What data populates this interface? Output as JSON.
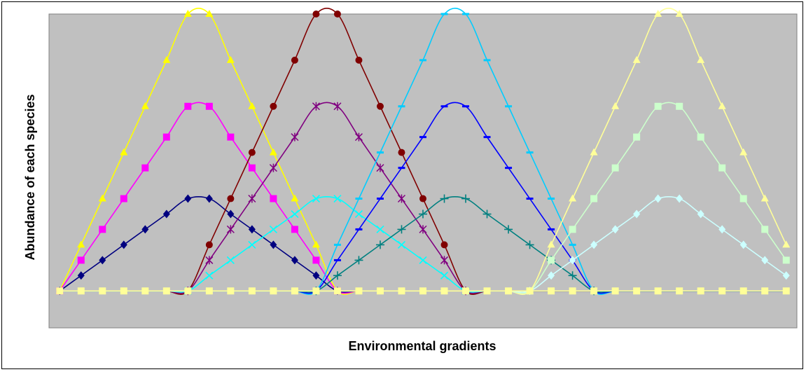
{
  "chart_data": {
    "type": "line",
    "title": "",
    "xlabel": "Environmental gradients",
    "ylabel": "Abundance of each species",
    "x": [
      1,
      2,
      3,
      4,
      5,
      6,
      7,
      8,
      9,
      10,
      11,
      12,
      13,
      14,
      15,
      16,
      17,
      18,
      19,
      20,
      21,
      22,
      23,
      24,
      25,
      26,
      27,
      28,
      29,
      30,
      31,
      32,
      33,
      34,
      35
    ],
    "xlim": [
      0.5,
      35.5
    ],
    "ylim": [
      -0.4,
      3.0
    ],
    "grid": false,
    "legend": "none",
    "plot_background": "#c0c0c0",
    "series": [
      {
        "color": "#ffff00",
        "marker": "triangle",
        "values": [
          0,
          0.5,
          1,
          1.5,
          2,
          2.5,
          3,
          3,
          2.5,
          2,
          1.5,
          1,
          0.5,
          0,
          0,
          0,
          0,
          0,
          0,
          0,
          0,
          0,
          0,
          0,
          0,
          0,
          0,
          0,
          0,
          0,
          0,
          0,
          0,
          0,
          0
        ]
      },
      {
        "color": "#ff00ff",
        "marker": "square",
        "values": [
          0,
          0.333,
          0.667,
          1,
          1.333,
          1.667,
          2,
          2,
          1.667,
          1.333,
          1,
          0.667,
          0.333,
          0,
          0,
          0,
          0,
          0,
          0,
          0,
          0,
          0,
          0,
          0,
          0,
          0,
          0,
          0,
          0,
          0,
          0,
          0,
          0,
          0,
          0
        ]
      },
      {
        "color": "#000080",
        "marker": "diamond",
        "values": [
          0,
          0.167,
          0.333,
          0.5,
          0.667,
          0.833,
          1,
          1,
          0.833,
          0.667,
          0.5,
          0.333,
          0.167,
          0,
          0,
          0,
          0,
          0,
          0,
          0,
          0,
          0,
          0,
          0,
          0,
          0,
          0,
          0,
          0,
          0,
          0,
          0,
          0,
          0,
          0
        ]
      },
      {
        "color": "#800000",
        "marker": "circle",
        "values": [
          0,
          0,
          0,
          0,
          0,
          0,
          0,
          0.5,
          1,
          1.5,
          2,
          2.5,
          3,
          3,
          2.5,
          2,
          1.5,
          1,
          0.5,
          0,
          0,
          0,
          0,
          0,
          0,
          0,
          0,
          0,
          0,
          0,
          0,
          0,
          0,
          0,
          0
        ]
      },
      {
        "color": "#800080",
        "marker": "star",
        "values": [
          0,
          0,
          0,
          0,
          0,
          0,
          0,
          0.333,
          0.667,
          1,
          1.333,
          1.667,
          2,
          2,
          1.667,
          1.333,
          1,
          0.667,
          0.333,
          0,
          0,
          0,
          0,
          0,
          0,
          0,
          0,
          0,
          0,
          0,
          0,
          0,
          0,
          0,
          0
        ]
      },
      {
        "color": "#00ffff",
        "marker": "x",
        "values": [
          0,
          0,
          0,
          0,
          0,
          0,
          0,
          0.167,
          0.333,
          0.5,
          0.667,
          0.833,
          1,
          1,
          0.833,
          0.667,
          0.5,
          0.333,
          0.167,
          0,
          0,
          0,
          0,
          0,
          0,
          0,
          0,
          0,
          0,
          0,
          0,
          0,
          0,
          0,
          0
        ]
      },
      {
        "color": "#00ccff",
        "marker": "dash",
        "values": [
          0,
          0,
          0,
          0,
          0,
          0,
          0,
          0,
          0,
          0,
          0,
          0,
          0,
          0.5,
          1,
          1.5,
          2,
          2.5,
          3,
          3,
          2.5,
          2,
          1.5,
          1,
          0.5,
          0,
          0,
          0,
          0,
          0,
          0,
          0,
          0,
          0,
          0
        ]
      },
      {
        "color": "#0000ff",
        "marker": "dash",
        "values": [
          0,
          0,
          0,
          0,
          0,
          0,
          0,
          0,
          0,
          0,
          0,
          0,
          0,
          0.333,
          0.667,
          1,
          1.333,
          1.667,
          2,
          2,
          1.667,
          1.333,
          1,
          0.667,
          0.333,
          0,
          0,
          0,
          0,
          0,
          0,
          0,
          0,
          0,
          0
        ]
      },
      {
        "color": "#008080",
        "marker": "plus",
        "values": [
          0,
          0,
          0,
          0,
          0,
          0,
          0,
          0,
          0,
          0,
          0,
          0,
          0,
          0.167,
          0.333,
          0.5,
          0.667,
          0.833,
          1,
          1,
          0.833,
          0.667,
          0.5,
          0.333,
          0.167,
          0,
          0,
          0,
          0,
          0,
          0,
          0,
          0,
          0,
          0
        ]
      },
      {
        "color": "#ffff99",
        "marker": "triangle",
        "values": [
          0,
          0,
          0,
          0,
          0,
          0,
          0,
          0,
          0,
          0,
          0,
          0,
          0,
          0,
          0,
          0,
          0,
          0,
          0,
          0,
          0,
          0,
          0,
          0.5,
          1,
          1.5,
          2,
          2.5,
          3,
          3,
          2.5,
          2,
          1.5,
          1,
          0.5
        ]
      },
      {
        "color": "#ccffcc",
        "marker": "square",
        "values": [
          0,
          0,
          0,
          0,
          0,
          0,
          0,
          0,
          0,
          0,
          0,
          0,
          0,
          0,
          0,
          0,
          0,
          0,
          0,
          0,
          0,
          0,
          0,
          0.333,
          0.667,
          1,
          1.333,
          1.667,
          2,
          2,
          1.667,
          1.333,
          1,
          0.667,
          0.333
        ]
      },
      {
        "color": "#ccffff",
        "marker": "diamond",
        "values": [
          0,
          0,
          0,
          0,
          0,
          0,
          0,
          0,
          0,
          0,
          0,
          0,
          0,
          0,
          0,
          0,
          0,
          0,
          0,
          0,
          0,
          0,
          0,
          0.167,
          0.333,
          0.5,
          0.667,
          0.833,
          1,
          1,
          0.833,
          0.667,
          0.5,
          0.333,
          0.167
        ]
      }
    ],
    "zero_line_series": [
      {
        "color": "#ffff99",
        "marker": "square",
        "values": [
          0,
          0,
          0,
          0,
          0,
          0,
          0,
          0,
          0,
          0,
          0,
          0,
          0,
          0,
          0,
          0,
          0,
          0,
          0,
          0,
          0,
          0,
          0,
          0,
          0,
          0,
          0,
          0,
          0,
          0,
          0,
          0,
          0,
          0,
          0
        ]
      }
    ]
  }
}
